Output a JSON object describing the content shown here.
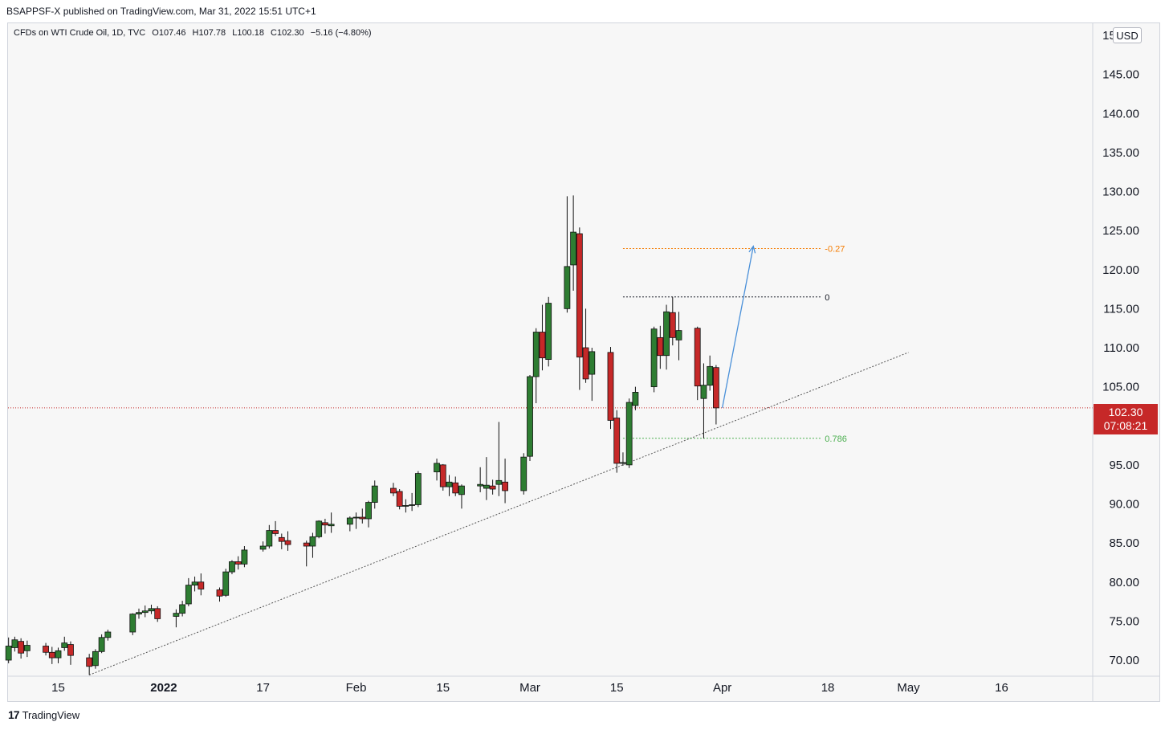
{
  "header": {
    "publish_text": "BSAPPSF-X published on TradingView.com, Mar 31, 2022 15:51 UTC+1"
  },
  "legend": {
    "symbol": "CFDs on WTI Crude Oil, 1D, TVC",
    "open": "O107.46",
    "high": "H107.78",
    "low": "L100.18",
    "close": "C102.30",
    "change": "−5.16 (−4.80%)"
  },
  "price_scale": {
    "currency": "USD"
  },
  "last_price": {
    "value": "102.30",
    "countdown": "07:08:21"
  },
  "footer": {
    "brand": "TradingView",
    "logo": "17"
  },
  "colors": {
    "up": "#2e7d32",
    "down": "#c62828",
    "background": "#f7f7f7",
    "fib_orange": "#f57c00",
    "fib_green": "#4caf50",
    "arrow": "#4a90d9"
  },
  "chart_data": {
    "type": "candlestick",
    "symbol": "CFDs on WTI Crude Oil",
    "interval": "1D",
    "ylim": [
      68,
      153
    ],
    "y_ticks": [
      70,
      75,
      80,
      85,
      90,
      95,
      100,
      105,
      110,
      115,
      120,
      125,
      130,
      135,
      140,
      145,
      150
    ],
    "y_tick_labels": [
      "70.00",
      "75.00",
      "80.00",
      "85.00",
      "90.00",
      "95.00",
      "100.00",
      "105.00",
      "110.00",
      "115.00",
      "120.00",
      "125.00",
      "130.00",
      "135.00",
      "140.00",
      "145.00",
      "150.00"
    ],
    "x_ticks": [
      {
        "date": "2021-12-15",
        "label": "15"
      },
      {
        "date": "2022-01-01",
        "label": "2022"
      },
      {
        "date": "2022-01-17",
        "label": "17"
      },
      {
        "date": "2022-02-01",
        "label": "Feb"
      },
      {
        "date": "2022-02-15",
        "label": "15"
      },
      {
        "date": "2022-03-01",
        "label": "Mar"
      },
      {
        "date": "2022-03-15",
        "label": "15"
      },
      {
        "date": "2022-04-01",
        "label": "Apr"
      },
      {
        "date": "2022-04-18",
        "label": "18"
      },
      {
        "date": "2022-05-01",
        "label": "May"
      },
      {
        "date": "2022-05-16",
        "label": "16"
      }
    ],
    "x_range": [
      "2021-12-06",
      "2022-05-27"
    ],
    "candles": [
      {
        "date": "2021-12-07",
        "o": 70.0,
        "h": 72.9,
        "l": 69.6,
        "c": 71.8
      },
      {
        "date": "2021-12-08",
        "o": 71.6,
        "h": 73.0,
        "l": 71.1,
        "c": 72.6
      },
      {
        "date": "2021-12-09",
        "o": 72.4,
        "h": 72.8,
        "l": 70.2,
        "c": 70.9
      },
      {
        "date": "2021-12-10",
        "o": 71.2,
        "h": 72.5,
        "l": 70.4,
        "c": 71.9
      },
      {
        "date": "2021-12-13",
        "o": 71.8,
        "h": 72.2,
        "l": 70.6,
        "c": 71.0
      },
      {
        "date": "2021-12-14",
        "o": 71.0,
        "h": 71.7,
        "l": 69.5,
        "c": 70.3
      },
      {
        "date": "2021-12-15",
        "o": 70.3,
        "h": 71.6,
        "l": 69.6,
        "c": 71.2
      },
      {
        "date": "2021-12-16",
        "o": 71.6,
        "h": 73.0,
        "l": 71.2,
        "c": 72.2
      },
      {
        "date": "2021-12-17",
        "o": 72.0,
        "h": 72.4,
        "l": 69.4,
        "c": 70.6
      },
      {
        "date": "2021-12-20",
        "o": 70.3,
        "h": 70.8,
        "l": 68.1,
        "c": 69.2
      },
      {
        "date": "2021-12-21",
        "o": 69.3,
        "h": 71.4,
        "l": 68.9,
        "c": 71.1
      },
      {
        "date": "2021-12-22",
        "o": 71.1,
        "h": 73.3,
        "l": 70.9,
        "c": 72.9
      },
      {
        "date": "2021-12-23",
        "o": 72.9,
        "h": 73.9,
        "l": 72.5,
        "c": 73.6
      },
      {
        "date": "2021-12-27",
        "o": 73.6,
        "h": 76.0,
        "l": 73.2,
        "c": 75.9
      },
      {
        "date": "2021-12-28",
        "o": 75.9,
        "h": 76.6,
        "l": 75.3,
        "c": 76.1
      },
      {
        "date": "2021-12-29",
        "o": 76.1,
        "h": 77.0,
        "l": 75.5,
        "c": 76.3
      },
      {
        "date": "2021-12-30",
        "o": 76.3,
        "h": 77.1,
        "l": 75.9,
        "c": 76.6
      },
      {
        "date": "2021-12-31",
        "o": 76.6,
        "h": 76.9,
        "l": 74.9,
        "c": 75.3
      },
      {
        "date": "2022-01-03",
        "o": 75.6,
        "h": 76.5,
        "l": 74.2,
        "c": 76.0
      },
      {
        "date": "2022-01-04",
        "o": 76.0,
        "h": 77.6,
        "l": 75.6,
        "c": 77.1
      },
      {
        "date": "2022-01-05",
        "o": 77.2,
        "h": 80.5,
        "l": 76.9,
        "c": 79.6
      },
      {
        "date": "2022-01-06",
        "o": 79.6,
        "h": 80.7,
        "l": 78.8,
        "c": 80.0
      },
      {
        "date": "2022-01-07",
        "o": 80.0,
        "h": 81.1,
        "l": 78.3,
        "c": 79.1
      },
      {
        "date": "2022-01-10",
        "o": 79.0,
        "h": 79.3,
        "l": 77.5,
        "c": 78.2
      },
      {
        "date": "2022-01-11",
        "o": 78.3,
        "h": 81.7,
        "l": 78.1,
        "c": 81.3
      },
      {
        "date": "2022-01-12",
        "o": 81.3,
        "h": 82.8,
        "l": 81.0,
        "c": 82.6
      },
      {
        "date": "2022-01-13",
        "o": 82.6,
        "h": 83.3,
        "l": 81.6,
        "c": 82.3
      },
      {
        "date": "2022-01-14",
        "o": 82.3,
        "h": 84.6,
        "l": 81.9,
        "c": 84.1
      },
      {
        "date": "2022-01-17",
        "o": 84.2,
        "h": 85.2,
        "l": 83.9,
        "c": 84.6
      },
      {
        "date": "2022-01-18",
        "o": 84.6,
        "h": 87.3,
        "l": 84.3,
        "c": 86.6
      },
      {
        "date": "2022-01-19",
        "o": 86.6,
        "h": 87.8,
        "l": 85.9,
        "c": 86.2
      },
      {
        "date": "2022-01-20",
        "o": 85.7,
        "h": 86.2,
        "l": 84.2,
        "c": 85.2
      },
      {
        "date": "2022-01-21",
        "o": 85.3,
        "h": 86.5,
        "l": 84.0,
        "c": 84.8
      },
      {
        "date": "2022-01-24",
        "o": 85.0,
        "h": 85.3,
        "l": 82.0,
        "c": 84.6
      },
      {
        "date": "2022-01-25",
        "o": 84.6,
        "h": 86.3,
        "l": 83.1,
        "c": 85.8
      },
      {
        "date": "2022-01-26",
        "o": 85.8,
        "h": 87.9,
        "l": 85.6,
        "c": 87.8
      },
      {
        "date": "2022-01-27",
        "o": 87.6,
        "h": 88.1,
        "l": 86.2,
        "c": 87.3
      },
      {
        "date": "2022-01-28",
        "o": 87.2,
        "h": 88.9,
        "l": 86.3,
        "c": 87.4
      },
      {
        "date": "2022-01-31",
        "o": 87.4,
        "h": 88.4,
        "l": 86.5,
        "c": 88.2
      },
      {
        "date": "2022-02-01",
        "o": 88.3,
        "h": 88.9,
        "l": 86.8,
        "c": 88.3
      },
      {
        "date": "2022-02-02",
        "o": 88.3,
        "h": 89.4,
        "l": 87.5,
        "c": 88.1
      },
      {
        "date": "2022-02-03",
        "o": 88.1,
        "h": 90.4,
        "l": 87.0,
        "c": 90.2
      },
      {
        "date": "2022-02-04",
        "o": 90.2,
        "h": 93.0,
        "l": 89.4,
        "c": 92.3
      },
      {
        "date": "2022-02-07",
        "o": 92.0,
        "h": 92.7,
        "l": 91.0,
        "c": 91.4
      },
      {
        "date": "2022-02-08",
        "o": 91.6,
        "h": 91.9,
        "l": 89.3,
        "c": 89.7
      },
      {
        "date": "2022-02-09",
        "o": 89.7,
        "h": 90.6,
        "l": 88.9,
        "c": 89.8
      },
      {
        "date": "2022-02-10",
        "o": 89.9,
        "h": 91.4,
        "l": 89.1,
        "c": 89.9
      },
      {
        "date": "2022-02-11",
        "o": 89.9,
        "h": 94.2,
        "l": 89.6,
        "c": 93.9
      },
      {
        "date": "2022-02-14",
        "o": 94.1,
        "h": 95.8,
        "l": 93.0,
        "c": 95.2
      },
      {
        "date": "2022-02-15",
        "o": 95.0,
        "h": 95.1,
        "l": 91.7,
        "c": 92.2
      },
      {
        "date": "2022-02-16",
        "o": 92.2,
        "h": 93.7,
        "l": 91.0,
        "c": 92.8
      },
      {
        "date": "2022-02-17",
        "o": 92.7,
        "h": 93.5,
        "l": 91.0,
        "c": 91.4
      },
      {
        "date": "2022-02-18",
        "o": 91.2,
        "h": 92.5,
        "l": 89.4,
        "c": 92.3
      },
      {
        "date": "2022-02-21",
        "o": 92.3,
        "h": 94.7,
        "l": 91.5,
        "c": 92.5
      },
      {
        "date": "2022-02-22",
        "o": 92.0,
        "h": 96.0,
        "l": 90.5,
        "c": 92.4
      },
      {
        "date": "2022-02-23",
        "o": 92.3,
        "h": 93.1,
        "l": 91.2,
        "c": 91.9
      },
      {
        "date": "2022-02-24",
        "o": 92.5,
        "h": 100.5,
        "l": 91.0,
        "c": 93.0
      },
      {
        "date": "2022-02-25",
        "o": 92.8,
        "h": 95.8,
        "l": 90.1,
        "c": 91.7
      },
      {
        "date": "2022-02-28",
        "o": 91.7,
        "h": 96.5,
        "l": 91.2,
        "c": 96.0
      },
      {
        "date": "2022-03-01",
        "o": 96.1,
        "h": 106.5,
        "l": 95.5,
        "c": 106.3
      },
      {
        "date": "2022-03-02",
        "o": 106.3,
        "h": 112.5,
        "l": 102.9,
        "c": 112.0
      },
      {
        "date": "2022-03-03",
        "o": 112.0,
        "h": 115.5,
        "l": 107.1,
        "c": 108.7
      },
      {
        "date": "2022-03-04",
        "o": 108.5,
        "h": 116.5,
        "l": 107.6,
        "c": 115.7
      },
      {
        "date": "2022-03-07",
        "o": 115.0,
        "h": 129.4,
        "l": 114.5,
        "c": 120.4
      },
      {
        "date": "2022-03-08",
        "o": 120.6,
        "h": 129.5,
        "l": 117.3,
        "c": 124.8
      },
      {
        "date": "2022-03-09",
        "o": 124.6,
        "h": 125.4,
        "l": 104.6,
        "c": 108.8
      },
      {
        "date": "2022-03-10",
        "o": 110.0,
        "h": 115.0,
        "l": 105.5,
        "c": 106.0
      },
      {
        "date": "2022-03-11",
        "o": 106.6,
        "h": 110.0,
        "l": 103.2,
        "c": 109.5
      },
      {
        "date": "2022-03-14",
        "o": 109.4,
        "h": 110.1,
        "l": 99.6,
        "c": 100.7
      },
      {
        "date": "2022-03-15",
        "o": 101.0,
        "h": 102.0,
        "l": 94.0,
        "c": 95.2
      },
      {
        "date": "2022-03-16",
        "o": 95.3,
        "h": 96.6,
        "l": 94.9,
        "c": 95.3
      },
      {
        "date": "2022-03-17",
        "o": 95.0,
        "h": 103.5,
        "l": 94.6,
        "c": 103.0
      },
      {
        "date": "2022-03-18",
        "o": 102.6,
        "h": 105.0,
        "l": 102.0,
        "c": 104.3
      },
      {
        "date": "2022-03-21",
        "o": 105.0,
        "h": 112.7,
        "l": 104.3,
        "c": 112.4
      },
      {
        "date": "2022-03-22",
        "o": 111.3,
        "h": 112.8,
        "l": 107.3,
        "c": 109.0
      },
      {
        "date": "2022-03-23",
        "o": 109.0,
        "h": 115.5,
        "l": 107.2,
        "c": 114.6
      },
      {
        "date": "2022-03-24",
        "o": 114.5,
        "h": 116.5,
        "l": 110.3,
        "c": 111.3
      },
      {
        "date": "2022-03-25",
        "o": 111.0,
        "h": 114.6,
        "l": 108.4,
        "c": 112.2
      },
      {
        "date": "2022-03-28",
        "o": 112.5,
        "h": 112.7,
        "l": 103.3,
        "c": 105.1
      },
      {
        "date": "2022-03-29",
        "o": 103.5,
        "h": 108.0,
        "l": 98.4,
        "c": 105.2
      },
      {
        "date": "2022-03-30",
        "o": 105.2,
        "h": 109.0,
        "l": 104.5,
        "c": 107.6
      },
      {
        "date": "2022-03-31",
        "o": 107.46,
        "h": 107.78,
        "l": 100.18,
        "c": 102.3
      }
    ],
    "fibonacci": [
      {
        "label": "-0.27",
        "price": 122.7,
        "color": "#f57c00"
      },
      {
        "label": "0",
        "price": 116.5,
        "color": "#131722"
      },
      {
        "label": "0.786",
        "price": 98.4,
        "color": "#4caf50"
      }
    ],
    "trendline": {
      "start": {
        "date": "2021-12-20",
        "price": 68.1
      },
      "end": {
        "date": "2022-05-01",
        "price": 109.4
      }
    },
    "projection_arrow": {
      "start": {
        "date": "2022-04-01",
        "price": 102.3
      },
      "end": {
        "date": "2022-04-06",
        "price": 123.0
      }
    },
    "current_price_line": 102.3
  }
}
